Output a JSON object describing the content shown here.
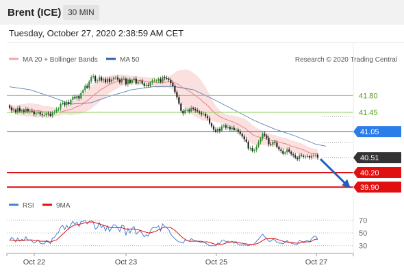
{
  "header": {
    "title": "Brent (ICE)",
    "timeframe": "30 MIN"
  },
  "datetime": "Tuesday, October 27, 2020 2:38:59 AM CET",
  "colors": {
    "bollinger": "#f4a6a6",
    "ma20": "#e88080",
    "ma50": "#2e5fa8",
    "resistance": "#8ccf5a",
    "resistance_text": "#5a9a1a",
    "pivot": "#1f5fbf",
    "pivot_label": "#2b7de9",
    "support": "#e01010",
    "price_label": "#333333",
    "candle_up": "#2e8b2e",
    "candle_down": "#222222",
    "rsi": "#4a7fd4",
    "rsi_ma": "#e01010"
  },
  "legend": {
    "bollinger": "MA 20 + Bollinger Bands",
    "ma50": "MA 50",
    "source": "Research © 2020 Trading Central"
  },
  "chart_data": [
    {
      "type": "candlestick",
      "title": "Brent (ICE)",
      "ylim": [
        39.66,
        42.43
      ],
      "x_ticks": [
        "Oct 22",
        "Oct 23",
        "Oct 25",
        "Oct 27"
      ],
      "closes": [
        41.55,
        41.49,
        41.5,
        41.45,
        41.54,
        41.47,
        41.49,
        41.46,
        41.52,
        41.47,
        41.48,
        41.47,
        41.41,
        41.43,
        41.45,
        41.41,
        41.39,
        41.39,
        41.43,
        41.42,
        41.38,
        41.45,
        41.46,
        41.51,
        41.53,
        41.62,
        41.65,
        41.6,
        41.66,
        41.62,
        41.71,
        41.77,
        41.74,
        41.79,
        41.74,
        41.85,
        41.91,
        42.0,
        41.96,
        42.09,
        42.18,
        42.2,
        42.1,
        42.11,
        42.18,
        42.11,
        42.14,
        42.07,
        42.15,
        42.08,
        42.13,
        42.17,
        42.17,
        42.13,
        42.07,
        42.15,
        42.15,
        42.03,
        42.12,
        42.06,
        42.12,
        42.15,
        42.05,
        42.08,
        42.1,
        42.05,
        42.0,
        42.02,
        42.0,
        42.07,
        42.11,
        42.11,
        42.11,
        42.14,
        42.08,
        42.18,
        42.16,
        42.15,
        42.12,
        42.06,
        42.0,
        41.87,
        41.76,
        41.63,
        41.48,
        41.43,
        41.5,
        41.5,
        41.47,
        41.54,
        41.52,
        41.49,
        41.47,
        41.44,
        41.41,
        41.42,
        41.37,
        41.33,
        41.22,
        41.16,
        41.09,
        41.05,
        41.11,
        41.07,
        41.16,
        41.18,
        41.13,
        41.15,
        41.1,
        41.13,
        41.08,
        41.09,
        41.05,
        41.0,
        40.95,
        40.89,
        40.84,
        40.7,
        40.71,
        40.65,
        40.67,
        40.74,
        40.83,
        40.91,
        41.0,
        40.97,
        40.92,
        40.79,
        40.78,
        40.84,
        40.82,
        40.73,
        40.68,
        40.65,
        40.59,
        40.62,
        40.68,
        40.63,
        40.58,
        40.56,
        40.51,
        40.48,
        40.56,
        40.55,
        40.53,
        40.53,
        40.54,
        40.51,
        40.55,
        40.56,
        40.57,
        40.51
      ],
      "ma20": [
        41.55,
        41.53,
        41.52,
        41.5,
        41.51,
        41.5,
        41.5,
        41.5,
        41.5,
        41.5,
        41.5,
        41.5,
        41.49,
        41.48,
        41.48,
        41.48,
        41.47,
        41.46,
        41.46,
        41.46,
        41.45,
        41.45,
        41.45,
        41.45,
        41.45,
        41.46,
        41.47,
        41.48,
        41.49,
        41.5,
        41.51,
        41.53,
        41.55,
        41.57,
        41.58,
        41.6,
        41.63,
        41.66,
        41.69,
        41.72,
        41.76,
        41.8,
        41.83,
        41.86,
        41.9,
        41.93,
        41.95,
        41.98,
        42.0,
        42.03,
        42.05,
        42.06,
        42.08,
        42.09,
        42.1,
        42.12,
        42.12,
        42.12,
        42.13,
        42.12,
        42.12,
        42.12,
        42.12,
        42.11,
        42.11,
        42.11,
        42.1,
        42.09,
        42.08,
        42.08,
        42.08,
        42.07,
        42.06,
        42.06,
        42.07,
        42.07,
        42.07,
        42.08,
        42.08,
        42.08,
        42.07,
        42.06,
        42.05,
        42.02,
        41.99,
        41.96,
        41.94,
        41.92,
        41.89,
        41.86,
        41.83,
        41.8,
        41.77,
        41.74,
        41.7,
        41.66,
        41.63,
        41.59,
        41.55,
        41.5,
        41.46,
        41.42,
        41.39,
        41.36,
        41.34,
        41.32,
        41.3,
        41.29,
        41.27,
        41.26,
        41.24,
        41.22,
        41.2,
        41.18,
        41.15,
        41.13,
        41.1,
        41.06,
        41.03,
        40.99,
        40.97,
        40.95,
        40.94,
        40.93,
        40.92,
        40.91,
        40.9,
        40.88,
        40.87,
        40.86,
        40.86,
        40.84,
        40.83,
        40.82,
        40.81,
        40.8,
        40.79,
        40.77,
        40.75,
        40.74,
        40.73,
        40.71,
        40.7,
        40.69,
        40.67,
        40.65,
        40.63,
        40.61,
        40.6,
        40.59,
        40.59,
        40.58
      ],
      "bb_width": [
        0.06,
        0.07,
        0.08,
        0.09,
        0.1,
        0.11,
        0.12,
        0.12,
        0.13,
        0.14,
        0.14,
        0.14,
        0.14,
        0.14,
        0.14,
        0.13,
        0.12,
        0.12,
        0.12,
        0.12,
        0.12,
        0.11,
        0.1,
        0.08,
        0.07,
        0.07,
        0.07,
        0.08,
        0.09,
        0.11,
        0.12,
        0.14,
        0.14,
        0.16,
        0.17,
        0.18,
        0.19,
        0.2,
        0.21,
        0.23,
        0.24,
        0.24,
        0.24,
        0.24,
        0.23,
        0.22,
        0.21,
        0.2,
        0.19,
        0.18,
        0.17,
        0.16,
        0.15,
        0.14,
        0.13,
        0.12,
        0.11,
        0.1,
        0.1,
        0.09,
        0.09,
        0.08,
        0.08,
        0.08,
        0.08,
        0.08,
        0.09,
        0.09,
        0.09,
        0.09,
        0.1,
        0.1,
        0.1,
        0.1,
        0.1,
        0.1,
        0.11,
        0.11,
        0.12,
        0.14,
        0.17,
        0.21,
        0.26,
        0.3,
        0.34,
        0.37,
        0.4,
        0.42,
        0.43,
        0.44,
        0.44,
        0.44,
        0.43,
        0.42,
        0.41,
        0.38,
        0.35,
        0.31,
        0.27,
        0.23,
        0.2,
        0.17,
        0.15,
        0.13,
        0.12,
        0.11,
        0.11,
        0.11,
        0.12,
        0.13,
        0.14,
        0.15,
        0.16,
        0.17,
        0.18,
        0.19,
        0.2,
        0.2,
        0.2,
        0.2,
        0.19,
        0.18,
        0.17,
        0.16,
        0.15,
        0.14,
        0.13,
        0.13,
        0.13,
        0.12,
        0.12,
        0.12,
        0.12,
        0.12,
        0.12,
        0.12,
        0.12,
        0.12,
        0.12,
        0.12,
        0.12,
        0.12,
        0.12,
        0.12,
        0.12,
        0.12,
        0.11,
        0.11,
        0.11,
        0.11,
        0.11,
        0.1
      ],
      "ma50_points": [
        [
          0,
          41.98
        ],
        [
          10,
          41.92
        ],
        [
          20,
          41.78
        ],
        [
          30,
          41.62
        ],
        [
          40,
          41.65
        ],
        [
          50,
          41.8
        ],
        [
          60,
          41.92
        ],
        [
          70,
          41.98
        ],
        [
          80,
          41.99
        ],
        [
          90,
          41.92
        ],
        [
          100,
          41.72
        ],
        [
          110,
          41.5
        ],
        [
          120,
          41.28
        ],
        [
          130,
          41.1
        ],
        [
          140,
          40.96
        ],
        [
          150,
          40.79
        ],
        [
          155,
          40.75
        ]
      ],
      "levels": {
        "resistance": [
          "41.80",
          "41.45"
        ],
        "pivot": "41.05",
        "last": "40.51",
        "support": [
          "40.20",
          "39.90"
        ]
      }
    },
    {
      "type": "line",
      "title": "RSI",
      "series": [
        {
          "name": "RSI",
          "values": [
            38,
            43,
            40,
            36,
            42,
            37,
            40,
            38,
            44,
            38,
            39,
            37,
            34,
            36,
            39,
            34,
            33,
            33,
            38,
            37,
            33,
            42,
            43,
            48,
            51,
            59,
            62,
            55,
            62,
            56,
            63,
            68,
            63,
            67,
            60,
            68,
            68,
            70,
            64,
            68,
            69,
            67,
            56,
            58,
            66,
            58,
            62,
            53,
            61,
            52,
            58,
            63,
            62,
            58,
            52,
            62,
            61,
            46,
            57,
            50,
            57,
            60,
            48,
            51,
            54,
            49,
            44,
            47,
            45,
            53,
            58,
            58,
            58,
            61,
            53,
            64,
            60,
            58,
            55,
            48,
            44,
            41,
            38,
            36,
            35,
            34,
            39,
            38,
            37,
            41,
            39,
            38,
            37,
            36,
            35,
            36,
            34,
            32,
            30,
            30,
            30,
            30,
            34,
            33,
            38,
            39,
            36,
            37,
            35,
            37,
            34,
            35,
            32,
            31,
            31,
            31,
            31,
            30,
            32,
            32,
            33,
            37,
            40,
            44,
            48,
            44,
            41,
            37,
            37,
            40,
            39,
            35,
            34,
            34,
            33,
            35,
            38,
            35,
            34,
            33,
            32,
            32,
            38,
            37,
            36,
            37,
            38,
            36,
            41,
            44,
            45,
            40
          ]
        },
        {
          "name": "9MA",
          "values": [
            38,
            39,
            38,
            38,
            38,
            38,
            38,
            38,
            39,
            39,
            39,
            39,
            38,
            38,
            38,
            37,
            37,
            37,
            37,
            36,
            36,
            37,
            38,
            39,
            42,
            45,
            48,
            51,
            54,
            57,
            59,
            61,
            62,
            63,
            63,
            64,
            65,
            66,
            66,
            67,
            67,
            67,
            66,
            65,
            64,
            63,
            62,
            61,
            60,
            59,
            58,
            58,
            58,
            58,
            58,
            58,
            57,
            56,
            56,
            56,
            56,
            56,
            55,
            55,
            54,
            53,
            52,
            51,
            50,
            50,
            51,
            52,
            53,
            55,
            56,
            58,
            59,
            59,
            59,
            58,
            56,
            54,
            51,
            48,
            45,
            42,
            40,
            38,
            37,
            37,
            37,
            37,
            37,
            37,
            37,
            36,
            36,
            36,
            35,
            34,
            33,
            32,
            32,
            32,
            32,
            33,
            34,
            35,
            36,
            36,
            36,
            36,
            35,
            34,
            34,
            33,
            33,
            32,
            32,
            32,
            32,
            33,
            34,
            36,
            38,
            40,
            41,
            41,
            41,
            41,
            41,
            40,
            39,
            38,
            37,
            36,
            36,
            35,
            35,
            35,
            34,
            34,
            34,
            35,
            35,
            36,
            36,
            36,
            37,
            39,
            40,
            40
          ]
        }
      ],
      "ylim": [
        20,
        80
      ],
      "y_ticks": [
        "70",
        "50",
        "30"
      ]
    }
  ]
}
